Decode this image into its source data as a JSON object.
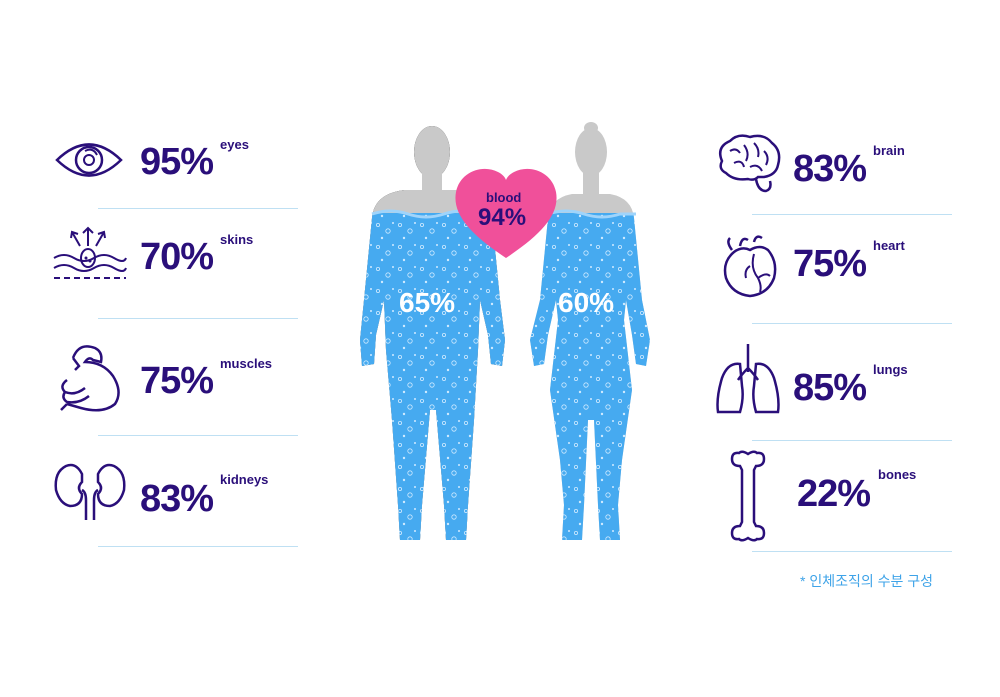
{
  "left": [
    {
      "pct": "95%",
      "label": "eyes"
    },
    {
      "pct": "70%",
      "label": "skins"
    },
    {
      "pct": "75%",
      "label": "muscles"
    },
    {
      "pct": "83%",
      "label": "kidneys"
    }
  ],
  "right": [
    {
      "pct": "83%",
      "label": "brain"
    },
    {
      "pct": "75%",
      "label": "heart"
    },
    {
      "pct": "85%",
      "label": "lungs"
    },
    {
      "pct": "22%",
      "label": "bones"
    }
  ],
  "male": {
    "pct": "65%"
  },
  "female": {
    "pct": "60%"
  },
  "blood": {
    "label": "blood",
    "pct": "94%"
  },
  "note": "* 인체조직의 수분 구성",
  "colors": {
    "text": "#2a0f7a",
    "water": "#46aaf0",
    "silhouette": "#c9c9c9",
    "heart": "#f0509a",
    "rule": "#bfe0f3",
    "note": "#3ea3e8"
  },
  "icons": [
    "eye-icon",
    "skin-icon",
    "muscle-icon",
    "kidney-icon",
    "brain-icon",
    "heart-organ-icon",
    "lungs-icon",
    "bone-icon"
  ]
}
